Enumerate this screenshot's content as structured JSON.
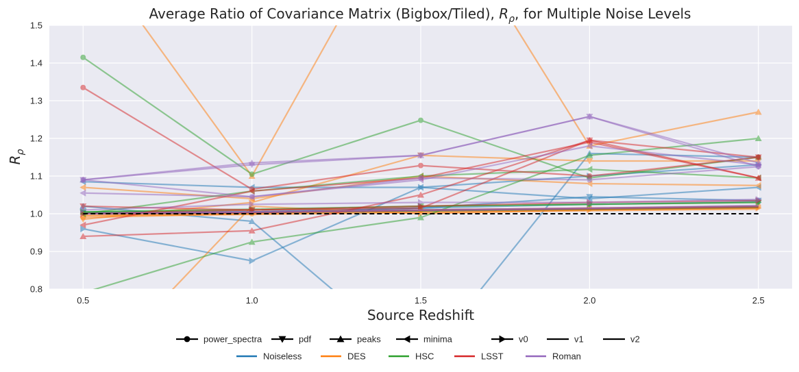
{
  "chart_data": {
    "type": "line",
    "title_prefix": "Average Ratio of Covariance Matrix (Bigbox/Tiled), ",
    "title_symbol_main": "R",
    "title_symbol_sub": "ρ",
    "title_suffix": ", for Multiple Noise Levels",
    "xlabel": "Source Redshift",
    "ylabel_main": "R",
    "ylabel_sub": "ρ",
    "x": [
      0.5,
      1.0,
      1.5,
      2.0,
      2.5
    ],
    "xlim": [
      0.4,
      2.6
    ],
    "ylim": [
      0.8,
      1.5
    ],
    "xticks": [
      "0.5",
      "1.0",
      "1.5",
      "2.0",
      "2.5"
    ],
    "yticks": [
      "0.8",
      "0.9",
      "1.0",
      "1.1",
      "1.2",
      "1.3",
      "1.4",
      "1.5"
    ],
    "grid": true,
    "legend_position": "bottom",
    "reference_line": {
      "y": 1.0,
      "style": "dashed",
      "color": "#000000"
    },
    "marker_legend": [
      {
        "name": "power_spectra",
        "marker": "circle"
      },
      {
        "name": "pdf",
        "marker": "triangle-down"
      },
      {
        "name": "peaks",
        "marker": "triangle-up"
      },
      {
        "name": "minima",
        "marker": "triangle-left"
      },
      {
        "name": "v0",
        "marker": "triangle-right"
      },
      {
        "name": "v1",
        "marker": "none"
      },
      {
        "name": "v2",
        "marker": "none"
      }
    ],
    "color_legend": [
      {
        "name": "Noiseless",
        "color": "#1f77b4"
      },
      {
        "name": "DES",
        "color": "#ff7f0e"
      },
      {
        "name": "HSC",
        "color": "#2ca02c"
      },
      {
        "name": "LSST",
        "color": "#d62728"
      },
      {
        "name": "Roman",
        "color": "#9467bd"
      }
    ],
    "series": [
      {
        "noise": "Noiseless",
        "stat": "power_spectra",
        "values": [
          1.003,
          1.005,
          1.015,
          1.025,
          1.032
        ]
      },
      {
        "noise": "Noiseless",
        "stat": "pdf",
        "values": [
          1.003,
          1.005,
          1.015,
          1.045,
          1.035
        ]
      },
      {
        "noise": "Noiseless",
        "stat": "peaks",
        "values": [
          1.02,
          0.98,
          0.6,
          1.16,
          1.15
        ]
      },
      {
        "noise": "Noiseless",
        "stat": "minima",
        "values": [
          1.085,
          1.07,
          1.07,
          1.04,
          1.07
        ]
      },
      {
        "noise": "Noiseless",
        "stat": "v0",
        "values": [
          0.96,
          0.875,
          1.07,
          1.1,
          1.13
        ]
      },
      {
        "noise": "Noiseless",
        "stat": "v1",
        "values": [
          1.0,
          1.003,
          1.008,
          1.012,
          1.018
        ]
      },
      {
        "noise": "Noiseless",
        "stat": "v2",
        "values": [
          1.0,
          1.003,
          1.007,
          1.011,
          1.016
        ]
      },
      {
        "noise": "DES",
        "stat": "power_spectra",
        "values": [
          0.99,
          1.0,
          1.01,
          1.015,
          1.02
        ]
      },
      {
        "noise": "DES",
        "stat": "pdf",
        "values": [
          0.985,
          1.03,
          1.155,
          1.14,
          1.14
        ]
      },
      {
        "noise": "DES",
        "stat": "peaks",
        "values": [
          1.72,
          1.1,
          1.9,
          1.18,
          1.27
        ]
      },
      {
        "noise": "DES",
        "stat": "minima",
        "values": [
          1.07,
          1.04,
          1.1,
          1.08,
          1.075
        ]
      },
      {
        "noise": "DES",
        "stat": "v0",
        "values": [
          0.55,
          1.02,
          1.0,
          1.01,
          1.015
        ]
      },
      {
        "noise": "DES",
        "stat": "v1",
        "values": [
          0.995,
          1.0,
          1.005,
          1.01,
          1.015
        ]
      },
      {
        "noise": "DES",
        "stat": "v2",
        "values": [
          0.995,
          0.998,
          1.003,
          1.008,
          1.012
        ]
      },
      {
        "noise": "HSC",
        "stat": "power_spectra",
        "values": [
          1.415,
          1.105,
          1.248,
          1.095,
          1.15
        ]
      },
      {
        "noise": "HSC",
        "stat": "pdf",
        "values": [
          1.005,
          1.01,
          1.02,
          1.025,
          1.03
        ]
      },
      {
        "noise": "HSC",
        "stat": "peaks",
        "values": [
          0.79,
          0.925,
          0.99,
          1.155,
          1.2
        ]
      },
      {
        "noise": "HSC",
        "stat": "minima",
        "values": [
          1.0,
          1.06,
          1.1,
          1.118,
          1.095
        ]
      },
      {
        "noise": "HSC",
        "stat": "v0",
        "values": [
          1.005,
          1.012,
          1.02,
          1.025,
          1.03
        ]
      },
      {
        "noise": "HSC",
        "stat": "v1",
        "values": [
          1.0,
          1.004,
          1.01,
          1.014,
          1.02
        ]
      },
      {
        "noise": "HSC",
        "stat": "v2",
        "values": [
          1.0,
          1.003,
          1.008,
          1.012,
          1.017
        ]
      },
      {
        "noise": "LSST",
        "stat": "power_spectra",
        "values": [
          1.335,
          1.065,
          1.128,
          1.1,
          1.15
        ]
      },
      {
        "noise": "LSST",
        "stat": "pdf",
        "values": [
          1.02,
          1.01,
          1.015,
          1.195,
          1.15
        ]
      },
      {
        "noise": "LSST",
        "stat": "peaks",
        "values": [
          0.94,
          0.955,
          1.05,
          1.195,
          1.095
        ]
      },
      {
        "noise": "LSST",
        "stat": "minima",
        "values": [
          0.97,
          1.06,
          1.095,
          1.19,
          1.095
        ]
      },
      {
        "noise": "LSST",
        "stat": "v0",
        "values": [
          1.0,
          1.01,
          1.02,
          1.03,
          1.035
        ]
      },
      {
        "noise": "LSST",
        "stat": "v1",
        "values": [
          1.0,
          1.004,
          1.01,
          1.015,
          1.02
        ]
      },
      {
        "noise": "LSST",
        "stat": "v2",
        "values": [
          1.0,
          1.003,
          1.009,
          1.013,
          1.018
        ]
      },
      {
        "noise": "Roman",
        "stat": "power_spectra",
        "values": [
          1.09,
          1.045,
          1.095,
          1.09,
          1.125
        ]
      },
      {
        "noise": "Roman",
        "stat": "pdf",
        "values": [
          1.09,
          1.13,
          1.155,
          1.258,
          1.125
        ]
      },
      {
        "noise": "Roman",
        "stat": "peaks",
        "values": [
          1.09,
          1.135,
          1.155,
          1.258,
          1.135
        ]
      },
      {
        "noise": "Roman",
        "stat": "minima",
        "values": [
          1.055,
          1.045,
          1.09,
          1.18,
          1.13
        ]
      },
      {
        "noise": "Roman",
        "stat": "v0",
        "values": [
          1.01,
          1.025,
          1.03,
          1.03,
          1.038
        ]
      },
      {
        "noise": "Roman",
        "stat": "v1",
        "values": [
          1.0,
          1.005,
          1.01,
          1.015,
          1.022
        ]
      },
      {
        "noise": "Roman",
        "stat": "v2",
        "values": [
          1.0,
          1.004,
          1.009,
          1.014,
          1.02
        ]
      }
    ]
  }
}
